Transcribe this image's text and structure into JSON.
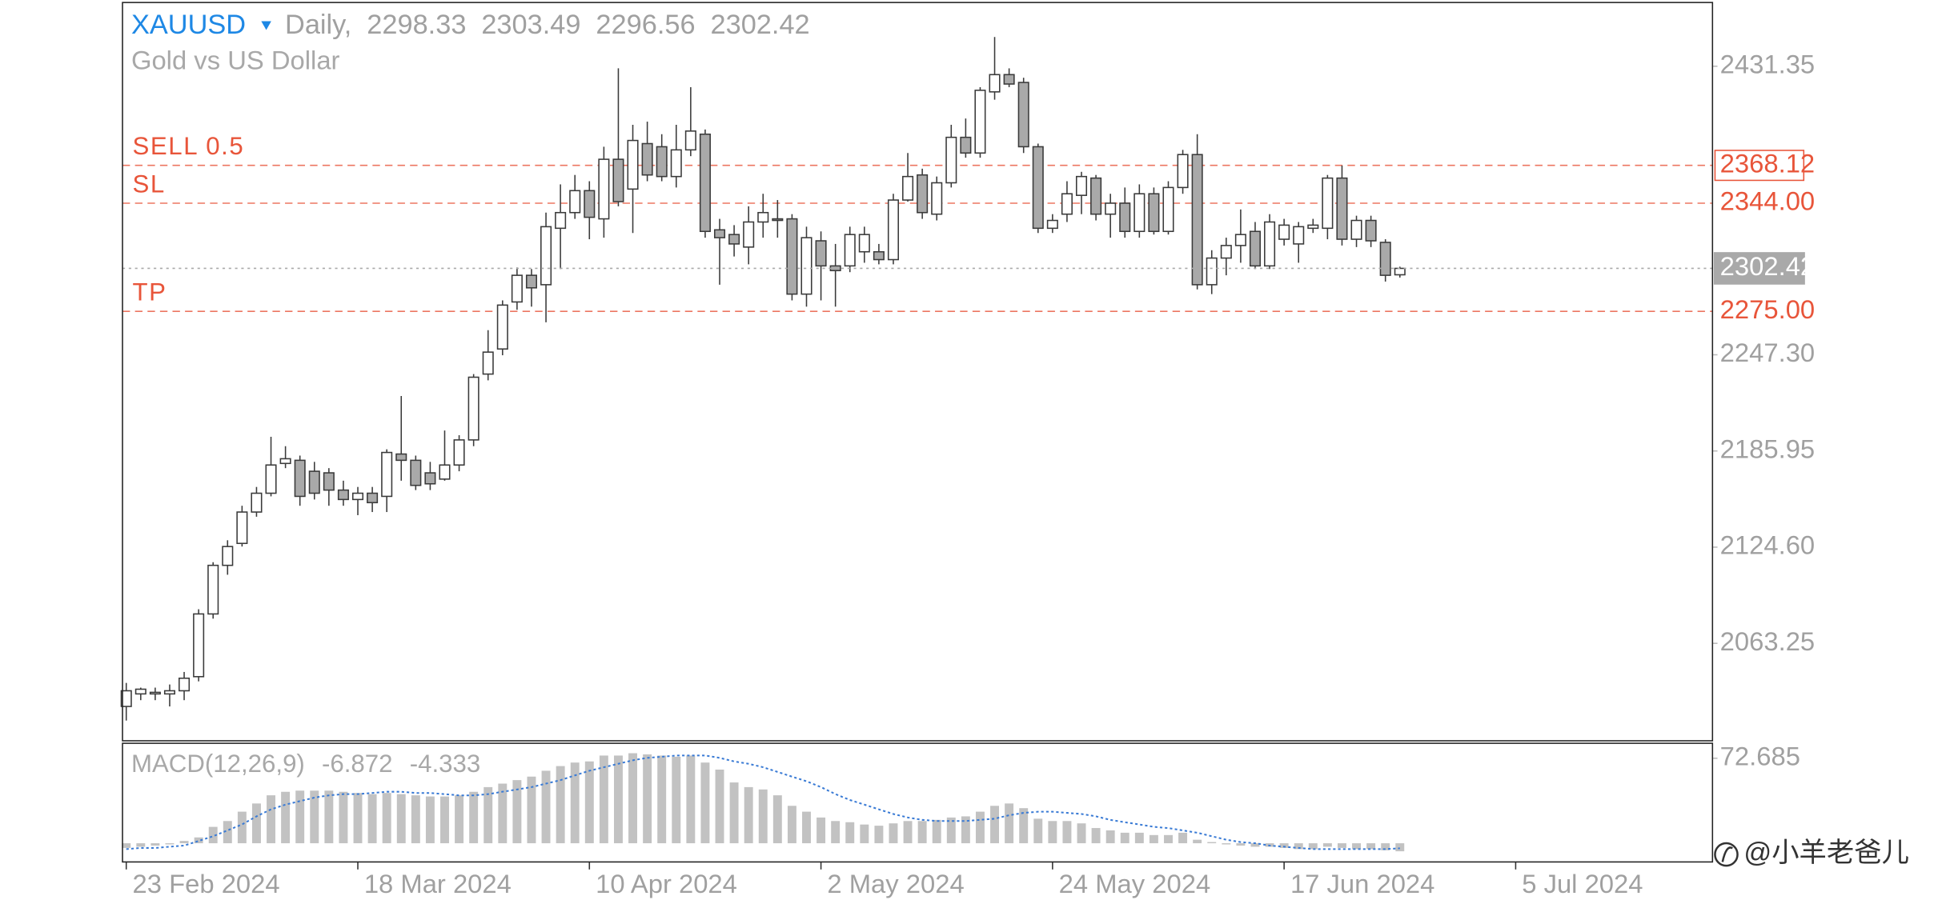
{
  "chart_data": [
    {
      "type": "candlestick",
      "symbol": "XAUUSD",
      "timeframe": "Daily,",
      "subtitle": "Gold vs US Dollar",
      "open": [
        2023,
        2031,
        2031,
        2031,
        2033,
        2042,
        2082,
        2113,
        2127,
        2147,
        2159,
        2178,
        2180,
        2173,
        2172,
        2161,
        2155,
        2159,
        2157,
        2184,
        2180,
        2172,
        2168,
        2177,
        2193,
        2235,
        2251,
        2281,
        2298,
        2292,
        2328,
        2338,
        2352,
        2334,
        2372,
        2353,
        2382,
        2380,
        2361,
        2378,
        2388,
        2327,
        2324,
        2316,
        2332,
        2334,
        2334,
        2286,
        2320,
        2304,
        2304,
        2313,
        2313,
        2308,
        2346,
        2362,
        2337,
        2357,
        2386,
        2376,
        2415,
        2426,
        2421,
        2380,
        2328,
        2337,
        2349,
        2360,
        2337,
        2344,
        2326,
        2350,
        2326,
        2354,
        2375,
        2292,
        2309,
        2317,
        2326,
        2304,
        2321,
        2318,
        2328,
        2328,
        2360,
        2321,
        2333,
        2319,
        2298.33
      ],
      "high": [
        2038,
        2035,
        2035,
        2037,
        2045,
        2085,
        2115,
        2129,
        2151,
        2163,
        2195,
        2189,
        2183,
        2179,
        2175,
        2167,
        2163,
        2163,
        2187,
        2221,
        2183,
        2179,
        2199,
        2196,
        2235,
        2263,
        2282,
        2303,
        2302,
        2338,
        2356,
        2362,
        2358,
        2380,
        2430,
        2394,
        2396,
        2388,
        2394,
        2418,
        2391,
        2334,
        2330,
        2342,
        2350,
        2346,
        2337,
        2329,
        2326,
        2318,
        2329,
        2329,
        2318,
        2350,
        2376,
        2366,
        2361,
        2394,
        2398,
        2418,
        2450,
        2430,
        2424,
        2382,
        2337,
        2358,
        2364,
        2362,
        2350,
        2354,
        2356,
        2354,
        2358,
        2378,
        2388,
        2314,
        2322,
        2340,
        2332,
        2337,
        2334,
        2332,
        2334,
        2362,
        2368,
        2336,
        2336,
        2321,
        2303.49
      ],
      "low": [
        2014,
        2027,
        2027,
        2023,
        2027,
        2039,
        2079,
        2107,
        2125,
        2144,
        2157,
        2175,
        2151,
        2155,
        2151,
        2151,
        2145,
        2147,
        2147,
        2167,
        2161,
        2161,
        2167,
        2173,
        2189,
        2231,
        2247,
        2276,
        2278,
        2268,
        2302,
        2334,
        2321,
        2322,
        2342,
        2325,
        2358,
        2358,
        2354,
        2374,
        2322,
        2292,
        2310,
        2305,
        2322,
        2322,
        2282,
        2278,
        2282,
        2278,
        2300,
        2306,
        2305,
        2305,
        2345,
        2334,
        2333,
        2354,
        2373,
        2373,
        2410,
        2418,
        2376,
        2325,
        2325,
        2332,
        2337,
        2333,
        2322,
        2322,
        2322,
        2324,
        2324,
        2350,
        2289,
        2286,
        2298,
        2306,
        2302,
        2302,
        2317,
        2306,
        2325,
        2321,
        2317,
        2316,
        2316,
        2294,
        2296.56
      ],
      "close": [
        2033,
        2034,
        2032,
        2033,
        2041,
        2082,
        2113,
        2125,
        2147,
        2159,
        2177,
        2181,
        2157,
        2159,
        2161,
        2155,
        2159,
        2153,
        2185,
        2180,
        2164,
        2165,
        2177,
        2193,
        2233,
        2249,
        2279,
        2298,
        2290,
        2329,
        2338,
        2352,
        2335,
        2372,
        2345,
        2384,
        2362,
        2361,
        2378,
        2390,
        2326,
        2322,
        2318,
        2332,
        2338,
        2333,
        2286,
        2322,
        2304,
        2301,
        2324,
        2324,
        2308,
        2346,
        2361,
        2338,
        2357,
        2386,
        2376,
        2416,
        2426,
        2420,
        2380,
        2328,
        2333,
        2350,
        2361,
        2337,
        2344,
        2326,
        2350,
        2326,
        2354,
        2375,
        2292,
        2309,
        2317,
        2324,
        2304,
        2332,
        2330,
        2329,
        2330,
        2360,
        2321,
        2333,
        2320,
        2298,
        2302.42
      ],
      "up_color": "#ffffff",
      "down_color": "#a9a9a9",
      "current_price_color": "#a9a9a9",
      "levels": [
        {
          "name": "SELL 0.5",
          "value": 2368.12,
          "color": "#e8553a",
          "boxed": true
        },
        {
          "name": "SL",
          "value": 2344,
          "value_label": "2344.00",
          "color": "#e8553a"
        },
        {
          "name": "TP",
          "value": 2275,
          "value_label": "2275.00",
          "color": "#e8553a"
        }
      ],
      "ylim": [
        2001.1,
        2472.0
      ],
      "yticks": [
        2063.25,
        {
          "value": 2124.6,
          "label": "2124.60"
        },
        2185.95,
        {
          "value": 2247.3,
          "label": "2247.30"
        },
        2431.35
      ],
      "xlim": [
        -0.26,
        109.6
      ],
      "xticks": [
        {
          "value": 0,
          "label": "23 Feb 2024"
        },
        {
          "value": 16,
          "label": "18 Mar 2024"
        },
        {
          "value": 32,
          "label": "10 Apr 2024"
        },
        {
          "value": 48,
          "label": "2 May 2024"
        },
        {
          "value": 64,
          "label": "24 May 2024"
        },
        {
          "value": 80,
          "label": "17 Jun 2024"
        },
        {
          "value": 96,
          "label": "5 Jul 2024"
        }
      ]
    },
    {
      "type": "macd",
      "title": "MACD(12,26,9)",
      "histogram": {
        "color": "#c2c2c2",
        "values": [
          -4,
          -3,
          -2,
          -1,
          2,
          5,
          14,
          19,
          27,
          34,
          41,
          44,
          45,
          45,
          45,
          44,
          43,
          42,
          43,
          42,
          41,
          40,
          40,
          41,
          44,
          48,
          51,
          54,
          57,
          62,
          66,
          69,
          70,
          75,
          75,
          77,
          76,
          75,
          74,
          75,
          69,
          63,
          52,
          48,
          46,
          41,
          32,
          27,
          22,
          19,
          18,
          16,
          15,
          17,
          19,
          19,
          20,
          22,
          23,
          27,
          32,
          34,
          30,
          21,
          19,
          19,
          17,
          13,
          11,
          9,
          9,
          7,
          7,
          9,
          3,
          1,
          -1,
          -2,
          -3,
          -3,
          -4,
          -5,
          -5,
          -3,
          -4,
          -5,
          -5,
          -6,
          -6.872
        ]
      },
      "signal": {
        "color": "#3a7bd5",
        "values": [
          -5,
          -4,
          -4,
          -3,
          -2,
          2,
          6,
          11,
          16,
          23,
          29,
          33,
          36,
          39,
          41,
          42,
          42,
          43,
          44,
          44,
          43,
          43,
          42,
          41,
          41,
          42,
          44,
          46,
          48,
          51,
          54,
          58,
          62,
          65,
          68,
          71,
          73,
          74,
          75,
          75,
          75,
          73,
          70,
          68,
          65,
          61,
          57,
          53,
          48,
          42,
          37,
          33,
          29,
          25,
          22,
          20,
          19,
          19,
          19,
          20,
          21,
          24,
          26,
          27,
          27,
          26,
          25,
          23,
          20,
          18,
          16,
          14,
          13,
          11,
          9,
          6,
          3,
          1,
          0,
          -2,
          -3,
          -4,
          -5,
          -5,
          -5,
          -5,
          -5,
          -5,
          -4.333
        ]
      },
      "ylim": [
        -16,
        85.5
      ],
      "yticks": [
        72.685
      ]
    }
  ],
  "watermark": "@小羊老爸儿"
}
